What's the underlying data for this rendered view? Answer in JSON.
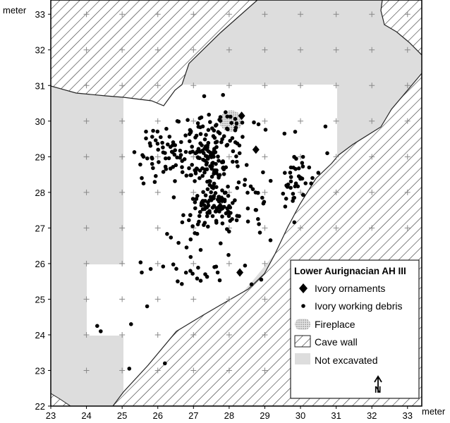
{
  "chart_data": {
    "type": "scatter",
    "title": "",
    "xlabel": "meter",
    "ylabel": "meter",
    "xlim": [
      23,
      33.4
    ],
    "ylim": [
      22,
      33.4
    ],
    "xticks": [
      "23",
      "24",
      "25",
      "26",
      "27",
      "28",
      "29",
      "30",
      "31",
      "32",
      "33"
    ],
    "yticks": [
      "22",
      "23",
      "24",
      "25",
      "26",
      "27",
      "28",
      "29",
      "30",
      "31",
      "32",
      "33"
    ],
    "grid_markers": "+",
    "legend": {
      "title": "Lower Aurignacian AH III",
      "placement": "bottom-right",
      "items": [
        {
          "key": "ornaments",
          "label": "Ivory ornaments",
          "symbol": "diamond"
        },
        {
          "key": "debris",
          "label": "Ivory working debris",
          "symbol": "dot"
        },
        {
          "key": "fireplace",
          "label": "Fireplace",
          "symbol": "stipple"
        },
        {
          "key": "cave_wall",
          "label": "Cave wall",
          "symbol": "hatch"
        },
        {
          "key": "not_excavated",
          "label": "Not excavated",
          "symbol": "grey"
        }
      ]
    },
    "north_arrow": "N",
    "colors": {
      "not_excavated": "#dddddd",
      "cave_wall_hatch": "#333333",
      "points": "#000000",
      "fireplace": "#bbbbbb"
    },
    "series": [
      {
        "name": "Ivory ornaments",
        "symbol": "diamond",
        "points": [
          [
            28.35,
            30.15
          ],
          [
            28.75,
            29.2
          ],
          [
            28.3,
            25.75
          ],
          [
            27.8,
            27.8
          ],
          [
            27.75,
            27.6
          ]
        ]
      },
      {
        "name": "Ivory working debris",
        "symbol": "dot",
        "clusters": [
          {
            "cx": 27.5,
            "cy": 28.8,
            "sx": 0.33,
            "sy": 0.65,
            "n": 150
          },
          {
            "cx": 26.45,
            "cy": 29.2,
            "sx": 0.55,
            "sy": 0.45,
            "n": 70
          },
          {
            "cx": 27.4,
            "cy": 27.45,
            "sx": 0.35,
            "sy": 0.25,
            "n": 60
          },
          {
            "cx": 29.85,
            "cy": 28.3,
            "sx": 0.2,
            "sy": 0.35,
            "n": 35
          },
          {
            "cx": 28.4,
            "cy": 28.0,
            "sx": 0.55,
            "sy": 0.75,
            "n": 40
          },
          {
            "cx": 27.0,
            "cy": 26.0,
            "sx": 0.6,
            "sy": 0.5,
            "n": 30
          },
          {
            "cx": 28.2,
            "cy": 29.9,
            "sx": 0.4,
            "sy": 0.2,
            "n": 15
          }
        ],
        "points": [
          [
            24.3,
            24.25
          ],
          [
            24.4,
            24.1
          ],
          [
            25.55,
            25.75
          ],
          [
            25.7,
            24.8
          ],
          [
            25.25,
            24.3
          ],
          [
            25.2,
            23.05
          ],
          [
            26.2,
            23.2
          ],
          [
            25.6,
            28.25
          ],
          [
            25.55,
            28.4
          ],
          [
            25.6,
            29.0
          ],
          [
            25.8,
            25.85
          ],
          [
            28.9,
            25.55
          ],
          [
            30.7,
            29.85
          ],
          [
            30.75,
            29.1
          ],
          [
            29.55,
            29.65
          ],
          [
            29.85,
            29.7
          ],
          [
            30.5,
            28.55
          ],
          [
            30.3,
            28.25
          ],
          [
            27.3,
            30.7
          ],
          [
            26.55,
            30.0
          ],
          [
            27.9,
            30.25
          ]
        ]
      }
    ],
    "fireplace": {
      "cx": 28.05,
      "cy": 30.0,
      "rx": 0.32,
      "ry": 0.3
    }
  }
}
